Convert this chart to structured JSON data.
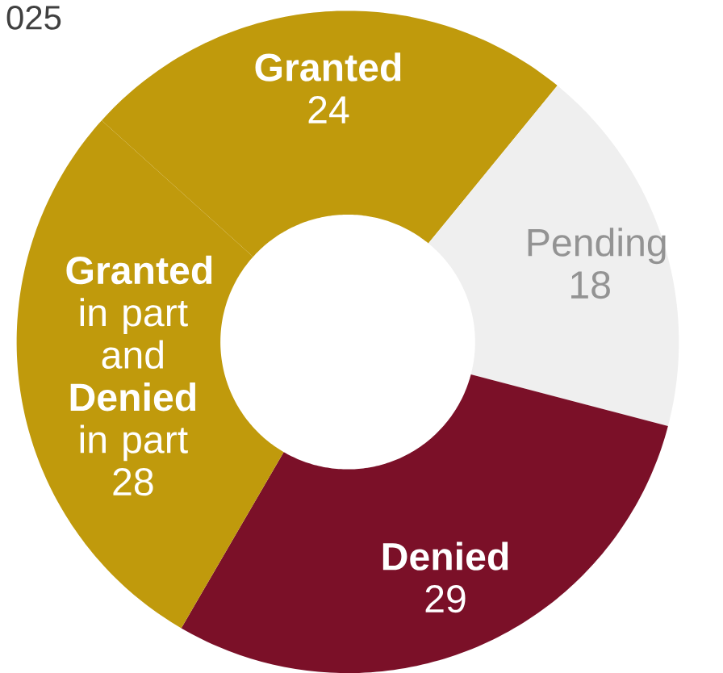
{
  "chart_data": {
    "type": "donut",
    "title": "025",
    "categories": [
      "Granted",
      "Pending",
      "Denied",
      "**Granted** in part and **Denied** in part"
    ],
    "values": [
      24,
      18,
      29,
      28
    ],
    "colors": [
      "#c09a0c",
      "#efefef",
      "#7b1028",
      "#c09a0c"
    ],
    "data_labels": true
  }
}
